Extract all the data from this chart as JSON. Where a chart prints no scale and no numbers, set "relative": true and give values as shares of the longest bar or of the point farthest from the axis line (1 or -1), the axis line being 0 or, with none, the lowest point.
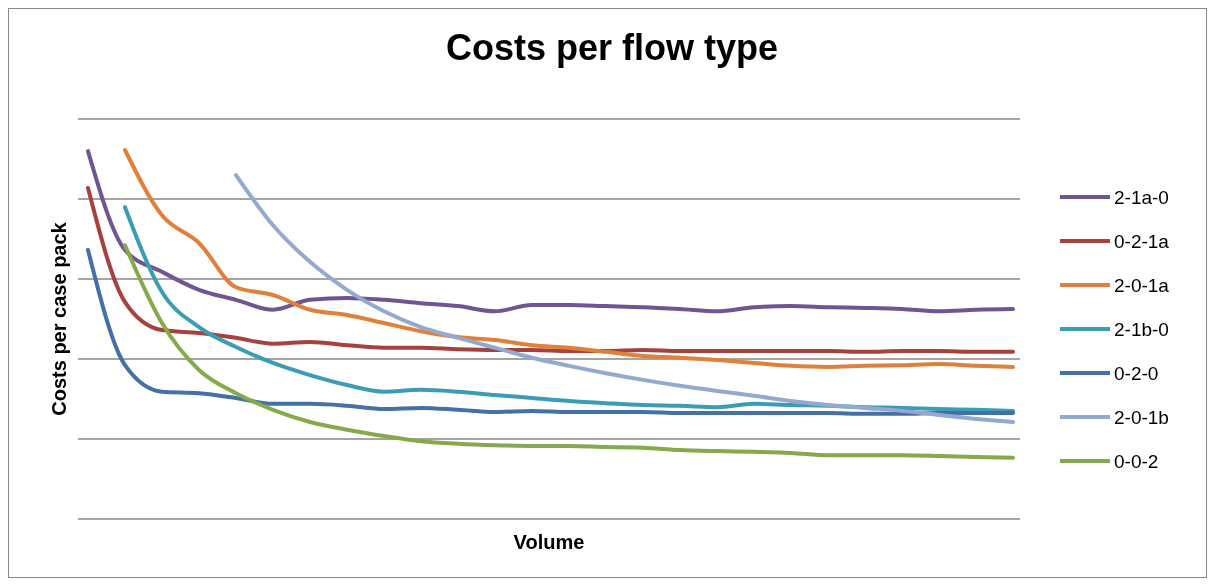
{
  "chart_data": {
    "type": "line",
    "title": "Costs per flow type",
    "xlabel": "Volume",
    "ylabel": "Costs per case pack",
    "relative": true,
    "grid": "y",
    "legend": "right",
    "categories": [
      null,
      null,
      null,
      null,
      null,
      null,
      null,
      null,
      null,
      null,
      null,
      null,
      null,
      null,
      null,
      null,
      null,
      null,
      null,
      null,
      null,
      null,
      null,
      null,
      null,
      null
    ],
    "series": [
      {
        "name": "2-1a-0",
        "color": "#6f5592",
        "values": [
          0.997,
          0.729,
          0.67,
          0.621,
          0.594,
          0.567,
          0.594,
          0.599,
          0.594,
          0.585,
          0.577,
          0.563,
          0.58,
          0.58,
          0.577,
          0.574,
          0.569,
          0.563,
          0.574,
          0.577,
          0.574,
          0.572,
          0.569,
          0.563,
          0.567,
          0.569
        ]
      },
      {
        "name": "0-2-1a",
        "color": "#a7413d",
        "values": [
          0.897,
          0.588,
          0.512,
          0.504,
          0.491,
          0.475,
          0.48,
          0.471,
          0.464,
          0.464,
          0.46,
          0.458,
          0.458,
          0.455,
          0.455,
          0.458,
          0.455,
          0.455,
          0.455,
          0.455,
          0.455,
          0.453,
          0.455,
          0.455,
          0.453,
          0.453
        ]
      },
      {
        "name": "2-0-1a",
        "color": "#e0803a",
        "values": [
          null,
          1,
          0.823,
          0.748,
          0.628,
          0.607,
          0.567,
          0.553,
          0.531,
          0.509,
          0.493,
          0.485,
          0.471,
          0.464,
          0.453,
          0.442,
          0.437,
          0.431,
          0.423,
          0.415,
          0.412,
          0.415,
          0.417,
          0.42,
          0.415,
          0.412
        ]
      },
      {
        "name": "2-1b-0",
        "color": "#3b9db3",
        "values": [
          null,
          0.845,
          0.615,
          0.52,
          0.466,
          0.423,
          0.39,
          0.363,
          0.345,
          0.35,
          0.345,
          0.336,
          0.328,
          0.32,
          0.314,
          0.309,
          0.307,
          0.303,
          0.312,
          0.309,
          0.307,
          0.303,
          0.301,
          0.298,
          0.296,
          0.293
        ]
      },
      {
        "name": "0-2-0",
        "color": "#4470a8",
        "values": [
          0.729,
          0.417,
          0.345,
          0.341,
          0.328,
          0.312,
          0.312,
          0.307,
          0.298,
          0.301,
          0.296,
          0.29,
          0.293,
          0.29,
          0.29,
          0.29,
          0.287,
          0.287,
          0.287,
          0.287,
          0.287,
          0.285,
          0.285,
          0.287,
          0.287,
          0.287
        ]
      },
      {
        "name": "2-0-1b",
        "color": "#93a9d0",
        "values": [
          null,
          null,
          null,
          null,
          0.932,
          0.796,
          0.697,
          0.621,
          0.563,
          0.52,
          0.491,
          0.464,
          0.437,
          0.415,
          0.395,
          0.377,
          0.361,
          0.347,
          0.334,
          0.32,
          0.309,
          0.301,
          0.293,
          0.282,
          0.271,
          0.263
        ]
      },
      {
        "name": "0-0-2",
        "color": "#86a94a",
        "values": [
          null,
          0.742,
          0.531,
          0.404,
          0.341,
          0.296,
          0.263,
          0.242,
          0.225,
          0.211,
          0.204,
          0.2,
          0.198,
          0.198,
          0.195,
          0.193,
          0.187,
          0.184,
          0.182,
          0.179,
          0.173,
          0.173,
          0.173,
          0.171,
          0.168,
          0.166
        ]
      }
    ]
  }
}
